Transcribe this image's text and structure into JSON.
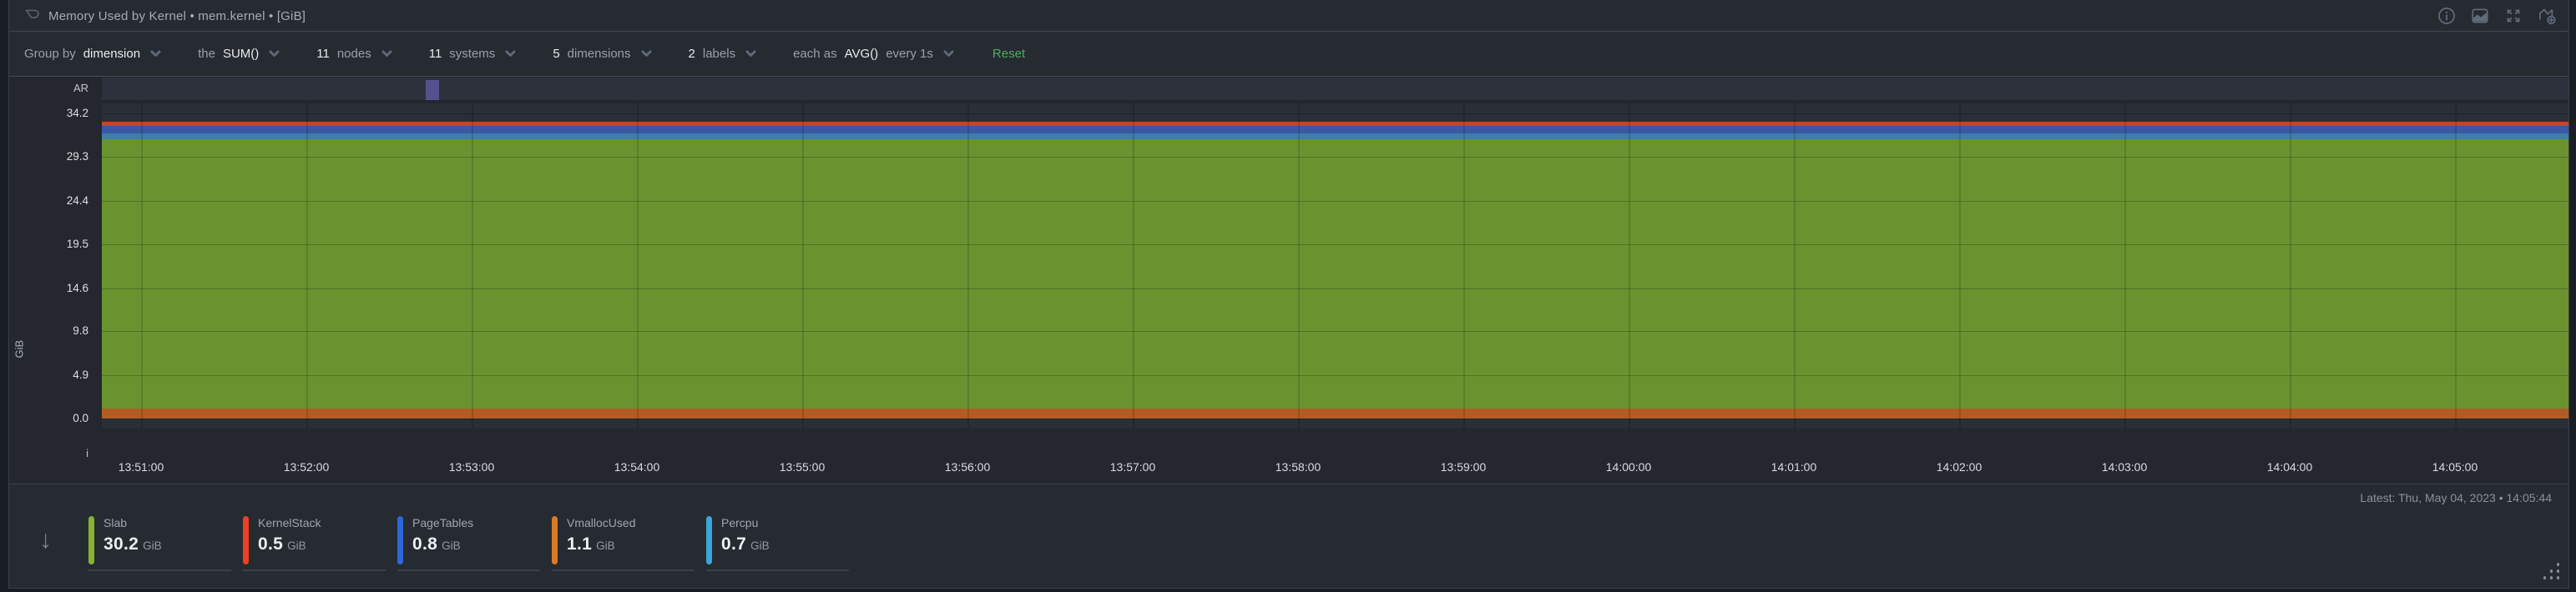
{
  "header": {
    "title": "Memory Used by Kernel • mem.kernel • [GiB]",
    "icons": [
      "info-icon",
      "chart-type-icon",
      "fullscreen-icon",
      "add-chart-icon"
    ]
  },
  "toolbar": {
    "items": [
      {
        "id": "group-by",
        "parts": [
          {
            "text": "Group by",
            "muted": true
          },
          {
            "text": "dimension",
            "muted": false
          }
        ]
      },
      {
        "id": "aggregation",
        "parts": [
          {
            "text": "the",
            "muted": true
          },
          {
            "text": "SUM()",
            "muted": false
          }
        ]
      },
      {
        "id": "nodes",
        "parts": [
          {
            "text": "11",
            "muted": false
          },
          {
            "text": "nodes",
            "muted": true
          }
        ]
      },
      {
        "id": "systems",
        "parts": [
          {
            "text": "11",
            "muted": false
          },
          {
            "text": "systems",
            "muted": true
          }
        ]
      },
      {
        "id": "dimensions",
        "parts": [
          {
            "text": "5",
            "muted": false
          },
          {
            "text": "dimensions",
            "muted": true
          }
        ]
      },
      {
        "id": "labels",
        "parts": [
          {
            "text": "2",
            "muted": false
          },
          {
            "text": "labels",
            "muted": true
          }
        ]
      },
      {
        "id": "time-aggregation",
        "parts": [
          {
            "text": "each as",
            "muted": true
          },
          {
            "text": "AVG()",
            "muted": false
          },
          {
            "text": "every 1s",
            "muted": true
          }
        ]
      }
    ],
    "reset_label": "Reset",
    "reset_color": "#4fae63"
  },
  "chart_data": {
    "type": "area",
    "stacked": true,
    "title": "Memory Used by Kernel",
    "context": "mem.kernel",
    "units": "GiB",
    "ylabel": "GiB",
    "anomaly_ribbon_label": "AR",
    "info_ribbon_label": "i",
    "grid": true,
    "legend_position": "bottom",
    "ylim": [
      0,
      35.5
    ],
    "y_ticks": [
      34.2,
      29.3,
      24.4,
      19.5,
      14.6,
      9.8,
      4.9,
      0.0
    ],
    "x_ticks": [
      "13:51:00",
      "13:52:00",
      "13:53:00",
      "13:54:00",
      "13:55:00",
      "13:56:00",
      "13:57:00",
      "13:58:00",
      "13:59:00",
      "14:00:00",
      "14:01:00",
      "14:02:00",
      "14:03:00",
      "14:04:00",
      "14:05:00"
    ],
    "series": [
      {
        "name": "Slab",
        "value_gib": 30.2,
        "color": "#89b32f",
        "plot_color": "#6a9330"
      },
      {
        "name": "KernelStack",
        "value_gib": 0.5,
        "color": "#f03e22",
        "plot_color": "#c4452e"
      },
      {
        "name": "PageTables",
        "value_gib": 0.8,
        "color": "#3166d8",
        "plot_color": "#3b57a6"
      },
      {
        "name": "VmallocUsed",
        "value_gib": 1.1,
        "color": "#d97a28",
        "plot_color": "#b05c24"
      },
      {
        "name": "Percpu",
        "value_gib": 0.7,
        "color": "#3ba6dc",
        "plot_color": "#3d7fa7"
      }
    ],
    "stack_order_bottom_to_top": [
      "VmallocUsed",
      "Slab",
      "Percpu",
      "PageTables",
      "KernelStack"
    ],
    "anomaly_marker": {
      "fraction_x": 0.134,
      "color": "#57508f"
    }
  },
  "footer": {
    "latest_label": "Latest: Thu, May 04, 2023 • 14:05:44"
  }
}
